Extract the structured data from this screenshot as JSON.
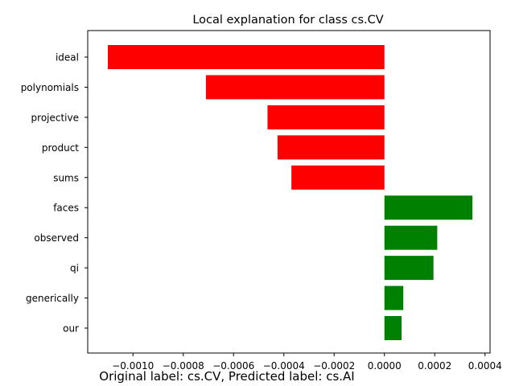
{
  "chart_data": {
    "type": "bar",
    "orientation": "horizontal",
    "title": "Local explanation for class cs.CV",
    "categories": [
      "ideal",
      "polynomials",
      "projective",
      "product",
      "sums",
      "faces",
      "observed",
      "qi",
      "generically",
      "our"
    ],
    "values": [
      -0.0011,
      -0.00071,
      -0.000465,
      -0.000425,
      -0.00037,
      0.00035,
      0.00021,
      0.000195,
      7.5e-05,
      6.8e-05
    ],
    "xlim": [
      -0.00118,
      0.00042
    ],
    "xticks": [
      -0.001,
      -0.0008,
      -0.0006,
      -0.0004,
      -0.0002,
      0.0,
      0.0002,
      0.0004
    ],
    "xtick_labels": [
      "−0.0010",
      "−0.0008",
      "−0.0006",
      "−0.0004",
      "−0.0002",
      "0.0000",
      "0.0002",
      "0.0004"
    ],
    "xlabel": "",
    "ylabel": "",
    "grid": false,
    "colors": {
      "negative": "#ff0000",
      "positive": "#008000"
    }
  },
  "caption": "Original label: cs.CV, Predicted label: cs.AI"
}
